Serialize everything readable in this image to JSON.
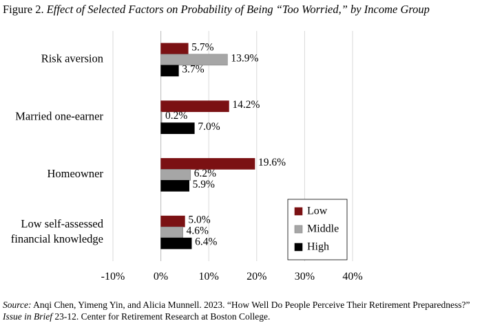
{
  "figure": {
    "label": "Figure 2.",
    "title": "Effect of Selected Factors on Probability of Being “Too Worried,” by Income Group"
  },
  "source": {
    "label": "Source:",
    "text_before": " Anqi Chen, Yimeng Yin, and Alicia Munnell. 2023. “How Well Do People Perceive Their Retirement Preparedness?” ",
    "publication": "Issue in Brief",
    "text_after": " 23-12. Center for Retirement Research at Boston College."
  },
  "chart_data": {
    "type": "bar",
    "orientation": "horizontal",
    "title": "",
    "xlabel": "",
    "ylabel": "",
    "xlim": [
      -10,
      40
    ],
    "x_ticks": [
      -10,
      0,
      10,
      20,
      30,
      40
    ],
    "x_tick_labels": [
      "-10%",
      "0%",
      "10%",
      "20%",
      "30%",
      "40%"
    ],
    "grid": true,
    "legend_position": "bottom-right",
    "categories": [
      [
        "Risk aversion"
      ],
      [
        "Married one-earner"
      ],
      [
        "Homeowner"
      ],
      [
        "Low self-assessed",
        "financial knowledge"
      ]
    ],
    "series": [
      {
        "name": "Low",
        "color": "#7B1113",
        "values": [
          5.7,
          14.2,
          19.6,
          5.0
        ],
        "labels": [
          "5.7%",
          "14.2%",
          "19.6%",
          "5.0%"
        ]
      },
      {
        "name": "Middle",
        "color": "#A6A6A6",
        "values": [
          13.9,
          0.2,
          6.2,
          4.6
        ],
        "labels": [
          "13.9%",
          "0.2%",
          "6.2%",
          "4.6%"
        ]
      },
      {
        "name": "High",
        "color": "#000000",
        "values": [
          3.7,
          7.0,
          5.9,
          6.4
        ],
        "labels": [
          "3.7%",
          "7.0%",
          "5.9%",
          "6.4%"
        ]
      }
    ]
  }
}
